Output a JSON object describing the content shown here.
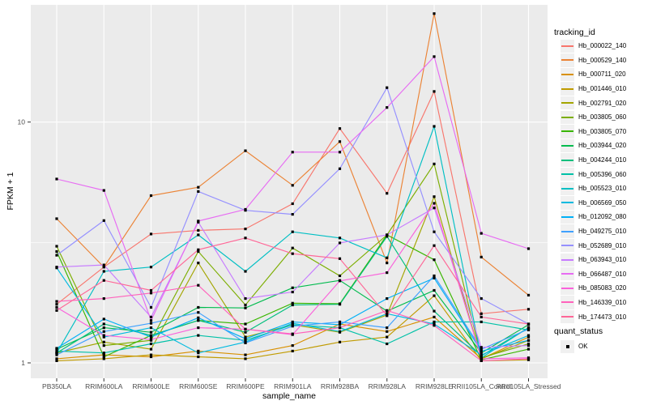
{
  "figure": {
    "background": "#FFFFFF",
    "panel_background": "#EBEBEB",
    "gridline_color": "#FFFFFF",
    "tick_color": "#333333",
    "tick_label_color": "#4D4D4D",
    "legend_key_background": "#F0F0F0"
  },
  "axes": {
    "x": {
      "title": "sample_name"
    },
    "y": {
      "title": "FPKM + 1",
      "tick_labels": [
        "1",
        "10"
      ],
      "tick_values": [
        1,
        10
      ]
    }
  },
  "legend": {
    "tracking_title": "tracking_id",
    "quant_title": "quant_status",
    "quant_items": [
      {
        "label": "OK",
        "marker": "black-square"
      }
    ]
  },
  "chart_data": {
    "type": "line",
    "title": "",
    "xlabel": "sample_name",
    "ylabel": "FPKM + 1",
    "y_scale": "log10",
    "ylim": [
      0.86,
      30.7
    ],
    "y_major_gridlines": [
      1,
      10
    ],
    "y_minor_gridlines": [
      3.1623
    ],
    "grid": true,
    "legend_position": "right",
    "point_marker": "filled-black-square",
    "categories": [
      "PB350LA",
      "RRIM600LA",
      "RRIM600LE",
      "RRIM600SE",
      "RRIM600PE",
      "RRIM901LA",
      "RRIM928BA",
      "RRIM928LA",
      "RRIM928LE",
      "RRII105LA_Control",
      "RRII105LA_Stressed"
    ],
    "series": [
      {
        "name": "Hb_000022_140",
        "color": "#F8766D",
        "values": [
          1.75,
          2.5,
          3.43,
          3.55,
          3.6,
          4.58,
          9.4,
          5.06,
          13.4,
          1.6,
          1.67
        ]
      },
      {
        "name": "Hb_000529_140",
        "color": "#EB8335",
        "values": [
          3.97,
          2.5,
          4.95,
          5.36,
          7.6,
          5.46,
          8.3,
          2.6,
          28.2,
          2.75,
          1.91
        ]
      },
      {
        "name": "Hb_000711_020",
        "color": "#D89000",
        "values": [
          1.04,
          1.08,
          1.06,
          1.12,
          1.08,
          1.18,
          1.45,
          1.35,
          1.55,
          1.04,
          1.28
        ]
      },
      {
        "name": "Hb_001446_010",
        "color": "#C09B00",
        "values": [
          1.02,
          1.04,
          1.08,
          1.06,
          1.04,
          1.12,
          1.22,
          1.28,
          1.9,
          1.02,
          1.03
        ]
      },
      {
        "name": "Hb_002791_020",
        "color": "#A3A500",
        "values": [
          1.1,
          1.22,
          1.14,
          2.6,
          1.28,
          1.44,
          1.34,
          1.58,
          4.9,
          1.04,
          1.24
        ]
      },
      {
        "name": "Hb_003805_060",
        "color": "#7CAE00",
        "values": [
          3.05,
          1.18,
          1.24,
          2.9,
          1.74,
          3.0,
          2.3,
          3.4,
          6.7,
          1.05,
          1.2
        ]
      },
      {
        "name": "Hb_003805_070",
        "color": "#39B600",
        "values": [
          2.9,
          1.06,
          1.3,
          1.5,
          1.45,
          1.77,
          1.76,
          3.4,
          2.68,
          1.03,
          1.14
        ]
      },
      {
        "name": "Hb_003944_020",
        "color": "#00BB4E",
        "values": [
          1.14,
          1.4,
          1.34,
          1.7,
          1.69,
          2.05,
          2.2,
          1.64,
          2.0,
          1.1,
          1.44
        ]
      },
      {
        "name": "Hb_004244_010",
        "color": "#00BF7D",
        "values": [
          1.1,
          1.45,
          1.3,
          1.5,
          1.34,
          1.74,
          1.75,
          3.35,
          1.64,
          1.07,
          1.4
        ]
      },
      {
        "name": "Hb_005396_060",
        "color": "#00C1A7",
        "values": [
          1.12,
          1.1,
          1.2,
          1.3,
          1.24,
          1.44,
          1.4,
          1.2,
          1.48,
          1.48,
          1.37
        ]
      },
      {
        "name": "Hb_005523_010",
        "color": "#00BFC4",
        "values": [
          1.1,
          2.4,
          2.5,
          3.4,
          2.4,
          3.5,
          3.3,
          2.73,
          9.6,
          1.05,
          1.4
        ]
      },
      {
        "name": "Hb_006569_050",
        "color": "#00BAE0",
        "values": [
          2.48,
          1.28,
          1.4,
          1.1,
          1.22,
          1.46,
          1.35,
          1.6,
          1.45,
          1.08,
          1.3
        ]
      },
      {
        "name": "Hb_012092_080",
        "color": "#00B0F6",
        "values": [
          1.15,
          1.52,
          1.28,
          1.54,
          1.26,
          1.48,
          1.44,
          1.85,
          2.25,
          1.12,
          1.24
        ]
      },
      {
        "name": "Hb_049275_010",
        "color": "#3FA1FF",
        "values": [
          1.08,
          1.35,
          1.46,
          1.62,
          1.21,
          1.42,
          1.48,
          1.4,
          2.3,
          1.14,
          1.38
        ]
      },
      {
        "name": "Hb_052689_010",
        "color": "#9590FF",
        "values": [
          2.8,
          3.9,
          1.7,
          5.15,
          4.3,
          4.14,
          6.4,
          13.9,
          3.5,
          1.85,
          1.45
        ]
      },
      {
        "name": "Hb_063943_010",
        "color": "#C77CFF",
        "values": [
          2.5,
          2.55,
          1.55,
          3.84,
          1.85,
          1.97,
          3.15,
          3.4,
          4.4,
          1.16,
          1.18
        ]
      },
      {
        "name": "Hb_066487_010",
        "color": "#E76BF3",
        "values": [
          5.8,
          5.2,
          1.5,
          3.88,
          4.34,
          7.5,
          7.5,
          11.5,
          18.7,
          3.45,
          2.98
        ]
      },
      {
        "name": "Hb_085083_020",
        "color": "#FA62DB",
        "values": [
          1.7,
          1.3,
          1.25,
          1.4,
          1.38,
          1.31,
          2.19,
          2.37,
          4.6,
          1.04,
          1.05
        ]
      },
      {
        "name": "Hb_146339_010",
        "color": "#FF62BC",
        "values": [
          1.8,
          1.85,
          1.95,
          2.1,
          1.38,
          1.32,
          1.4,
          1.65,
          1.43,
          1.02,
          1.04
        ]
      },
      {
        "name": "Hb_174473_010",
        "color": "#FF6797",
        "values": [
          1.65,
          2.2,
          2.0,
          2.95,
          3.3,
          2.84,
          2.71,
          1.57,
          3.07,
          1.55,
          1.45
        ]
      }
    ]
  }
}
